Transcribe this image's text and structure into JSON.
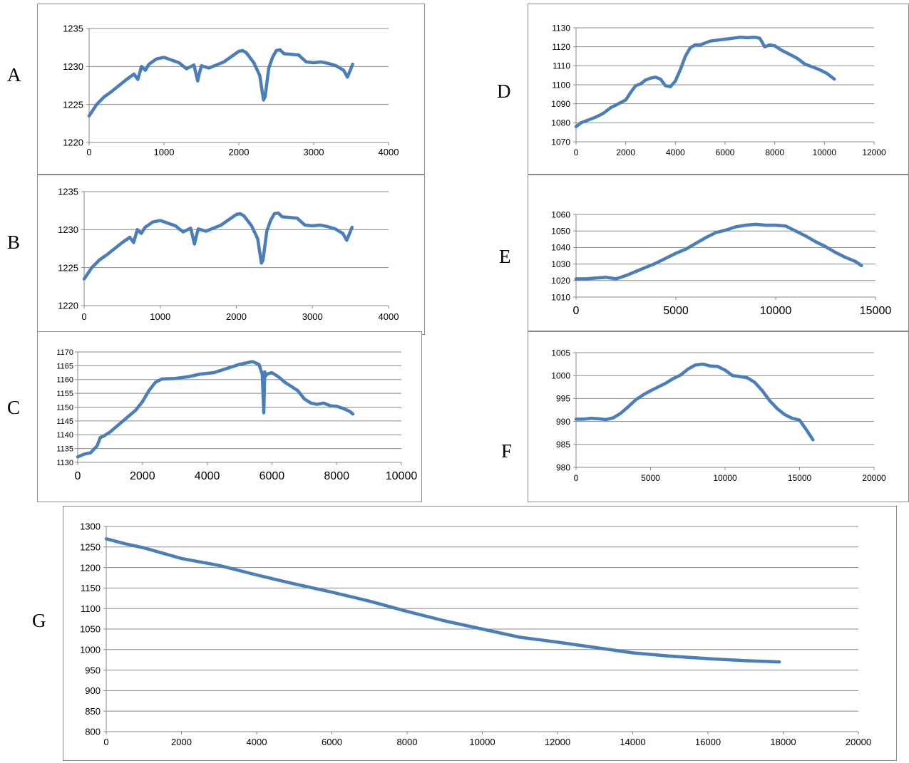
{
  "panel_labels": [
    "A",
    "B",
    "C",
    "D",
    "E",
    "F",
    "G"
  ],
  "series_color": "#4A7EBB",
  "chart_data": [
    {
      "id": "A",
      "type": "line",
      "title": "",
      "xlabel": "",
      "ylabel": "",
      "xlim": [
        0,
        4000
      ],
      "ylim": [
        1220,
        1235
      ],
      "xticks": [
        0,
        1000,
        2000,
        3000,
        4000
      ],
      "yticks": [
        1220,
        1225,
        1230,
        1235
      ],
      "grid": true,
      "legend": "none",
      "x": [
        0,
        100,
        200,
        300,
        400,
        500,
        600,
        650,
        700,
        750,
        800,
        900,
        1000,
        1200,
        1300,
        1400,
        1450,
        1470,
        1500,
        1600,
        1700,
        1800,
        1900,
        2000,
        2050,
        2100,
        2200,
        2280,
        2330,
        2350,
        2400,
        2450,
        2500,
        2550,
        2600,
        2700,
        2800,
        2900,
        3000,
        3100,
        3200,
        3300,
        3400,
        3450,
        3500,
        3520
      ],
      "y": [
        1223.5,
        1225,
        1226,
        1226.7,
        1227.5,
        1228.3,
        1229,
        1228.3,
        1230,
        1229.5,
        1230.3,
        1231,
        1231.2,
        1230.5,
        1229.7,
        1230.2,
        1228.1,
        1229,
        1230.1,
        1229.8,
        1230.2,
        1230.6,
        1231.3,
        1232,
        1232.1,
        1231.8,
        1230.5,
        1228.8,
        1225.6,
        1226,
        1229.8,
        1231.2,
        1232.1,
        1232.2,
        1231.7,
        1231.6,
        1231.5,
        1230.6,
        1230.5,
        1230.6,
        1230.4,
        1230.1,
        1229.5,
        1228.6,
        1229.8,
        1230.3
      ]
    },
    {
      "id": "B",
      "type": "line",
      "title": "",
      "xlabel": "",
      "ylabel": "",
      "xlim": [
        0,
        4000
      ],
      "ylim": [
        1220,
        1235
      ],
      "xticks": [
        0,
        1000,
        2000,
        3000,
        4000
      ],
      "yticks": [
        1220,
        1225,
        1230,
        1235
      ],
      "grid": true,
      "legend": "none",
      "x": [
        0,
        100,
        200,
        300,
        400,
        500,
        600,
        650,
        700,
        750,
        800,
        900,
        1000,
        1200,
        1300,
        1400,
        1450,
        1470,
        1500,
        1600,
        1700,
        1800,
        1900,
        2000,
        2050,
        2100,
        2200,
        2280,
        2330,
        2350,
        2400,
        2450,
        2500,
        2550,
        2600,
        2700,
        2800,
        2900,
        3000,
        3100,
        3200,
        3300,
        3400,
        3450,
        3500,
        3520
      ],
      "y": [
        1223.5,
        1225,
        1226,
        1226.7,
        1227.5,
        1228.3,
        1229,
        1228.3,
        1230,
        1229.5,
        1230.3,
        1231,
        1231.2,
        1230.5,
        1229.7,
        1230.2,
        1228.1,
        1229,
        1230.1,
        1229.8,
        1230.2,
        1230.6,
        1231.3,
        1232,
        1232.1,
        1231.8,
        1230.5,
        1228.8,
        1225.6,
        1226,
        1229.8,
        1231.2,
        1232.1,
        1232.2,
        1231.7,
        1231.6,
        1231.5,
        1230.6,
        1230.5,
        1230.6,
        1230.4,
        1230.1,
        1229.5,
        1228.6,
        1229.8,
        1230.3
      ]
    },
    {
      "id": "C",
      "type": "line",
      "title": "",
      "xlabel": "",
      "ylabel": "",
      "xlim": [
        0,
        10000
      ],
      "ylim": [
        1130,
        1170
      ],
      "xticks": [
        0,
        2000,
        4000,
        6000,
        8000,
        10000
      ],
      "yticks": [
        1130,
        1135,
        1140,
        1145,
        1150,
        1155,
        1160,
        1165,
        1170
      ],
      "grid": true,
      "legend": "none",
      "x": [
        0,
        200,
        400,
        600,
        700,
        800,
        1000,
        1200,
        1500,
        1800,
        2000,
        2200,
        2400,
        2600,
        3000,
        3400,
        3800,
        4200,
        4600,
        5000,
        5400,
        5600,
        5700,
        5750,
        5780,
        5800,
        5850,
        6000,
        6200,
        6400,
        6600,
        6800,
        7000,
        7200,
        7400,
        7600,
        7800,
        8000,
        8200,
        8400,
        8500
      ],
      "y": [
        1132,
        1133,
        1133.5,
        1136,
        1139,
        1139.5,
        1141,
        1143,
        1146,
        1149,
        1152,
        1156,
        1159,
        1160.2,
        1160.4,
        1161,
        1162,
        1162.5,
        1164,
        1165.5,
        1166.5,
        1165.5,
        1162,
        1148,
        1162.8,
        1161.2,
        1162,
        1162.5,
        1161,
        1159,
        1157.5,
        1156,
        1153,
        1151.5,
        1151,
        1151.5,
        1150.5,
        1150.3,
        1149.5,
        1148.5,
        1147.5
      ]
    },
    {
      "id": "D",
      "type": "line",
      "title": "",
      "xlabel": "",
      "ylabel": "",
      "xlim": [
        0,
        12000
      ],
      "ylim": [
        1070,
        1130
      ],
      "xticks": [
        0,
        2000,
        4000,
        6000,
        8000,
        10000,
        12000
      ],
      "yticks": [
        1070,
        1080,
        1090,
        1100,
        1110,
        1120,
        1130
      ],
      "grid": true,
      "legend": "none",
      "x": [
        0,
        200,
        500,
        800,
        1100,
        1400,
        1700,
        2000,
        2200,
        2400,
        2600,
        2800,
        3000,
        3200,
        3400,
        3600,
        3800,
        4000,
        4200,
        4400,
        4600,
        4800,
        5000,
        5200,
        5400,
        5700,
        6000,
        6300,
        6600,
        6900,
        7200,
        7400,
        7600,
        7800,
        8000,
        8300,
        8600,
        8900,
        9200,
        9500,
        9800,
        10100,
        10400
      ],
      "y": [
        1078,
        1080,
        1081.5,
        1083,
        1085,
        1088,
        1090,
        1092,
        1096,
        1099.5,
        1100.5,
        1102.5,
        1103.5,
        1104,
        1103,
        1099.5,
        1099,
        1102,
        1108,
        1115,
        1119.5,
        1121,
        1121,
        1122,
        1123,
        1123.5,
        1124,
        1124.5,
        1125,
        1124.8,
        1125,
        1124.5,
        1120,
        1121,
        1120.5,
        1118,
        1116,
        1114,
        1111,
        1109.5,
        1108,
        1106,
        1103
      ]
    },
    {
      "id": "E",
      "type": "line",
      "title": "",
      "xlabel": "",
      "ylabel": "",
      "xlim": [
        0,
        15000
      ],
      "ylim": [
        1010,
        1060
      ],
      "xticks": [
        0,
        5000,
        10000,
        15000
      ],
      "yticks": [
        1010,
        1020,
        1030,
        1040,
        1050,
        1060
      ],
      "grid": true,
      "legend": "none",
      "x": [
        0,
        500,
        1000,
        1500,
        2000,
        2500,
        3000,
        3500,
        4000,
        4500,
        5000,
        5500,
        6000,
        6500,
        7000,
        7500,
        8000,
        8500,
        9000,
        9500,
        10000,
        10500,
        11000,
        11500,
        12000,
        12500,
        13000,
        13500,
        14000,
        14300
      ],
      "y": [
        1021,
        1021,
        1021.5,
        1022,
        1021,
        1023,
        1025.5,
        1028,
        1030.5,
        1033.5,
        1036.5,
        1039,
        1042.5,
        1046,
        1049,
        1050.5,
        1052.5,
        1053.5,
        1054,
        1053.5,
        1053.5,
        1053,
        1050,
        1047,
        1043.5,
        1040.5,
        1037,
        1034,
        1031.5,
        1029
      ]
    },
    {
      "id": "F",
      "type": "line",
      "title": "",
      "xlabel": "",
      "ylabel": "",
      "xlim": [
        0,
        20000
      ],
      "ylim": [
        980,
        1005
      ],
      "xticks": [
        0,
        5000,
        10000,
        15000,
        20000
      ],
      "yticks": [
        980,
        985,
        990,
        995,
        1000,
        1005
      ],
      "grid": true,
      "legend": "none",
      "x": [
        0,
        500,
        1000,
        1500,
        2000,
        2500,
        3000,
        3500,
        4000,
        4500,
        5000,
        5500,
        6000,
        6500,
        7000,
        7500,
        8000,
        8500,
        9000,
        9500,
        10000,
        10500,
        11000,
        11500,
        12000,
        12500,
        13000,
        13500,
        14000,
        14500,
        15000,
        15500,
        15900
      ],
      "y": [
        990.5,
        990.5,
        990.7,
        990.6,
        990.4,
        990.8,
        991.8,
        993.2,
        994.7,
        995.8,
        996.7,
        997.5,
        998.3,
        999.3,
        1000.1,
        1001.4,
        1002.3,
        1002.5,
        1002.1,
        1002,
        1001.2,
        1000,
        999.8,
        999.5,
        998.5,
        996.7,
        994.5,
        992.8,
        991.5,
        990.7,
        990.3,
        988,
        986
      ]
    },
    {
      "id": "G",
      "type": "line",
      "title": "",
      "xlabel": "",
      "ylabel": "",
      "xlim": [
        0,
        20000
      ],
      "ylim": [
        800,
        1300
      ],
      "xticks": [
        0,
        2000,
        4000,
        6000,
        8000,
        10000,
        12000,
        14000,
        16000,
        18000,
        20000
      ],
      "yticks": [
        800,
        850,
        900,
        950,
        1000,
        1050,
        1100,
        1150,
        1200,
        1250,
        1300
      ],
      "grid": true,
      "legend": "none",
      "x": [
        0,
        500,
        1000,
        1500,
        2000,
        3000,
        4000,
        5000,
        6000,
        7000,
        8000,
        9000,
        10000,
        11000,
        12000,
        13000,
        14000,
        15000,
        16000,
        17000,
        17900
      ],
      "y": [
        1270,
        1258,
        1248,
        1235,
        1222,
        1205,
        1182,
        1160,
        1140,
        1118,
        1093,
        1070,
        1050,
        1030,
        1018,
        1005,
        992,
        984,
        978,
        973,
        970
      ]
    }
  ]
}
